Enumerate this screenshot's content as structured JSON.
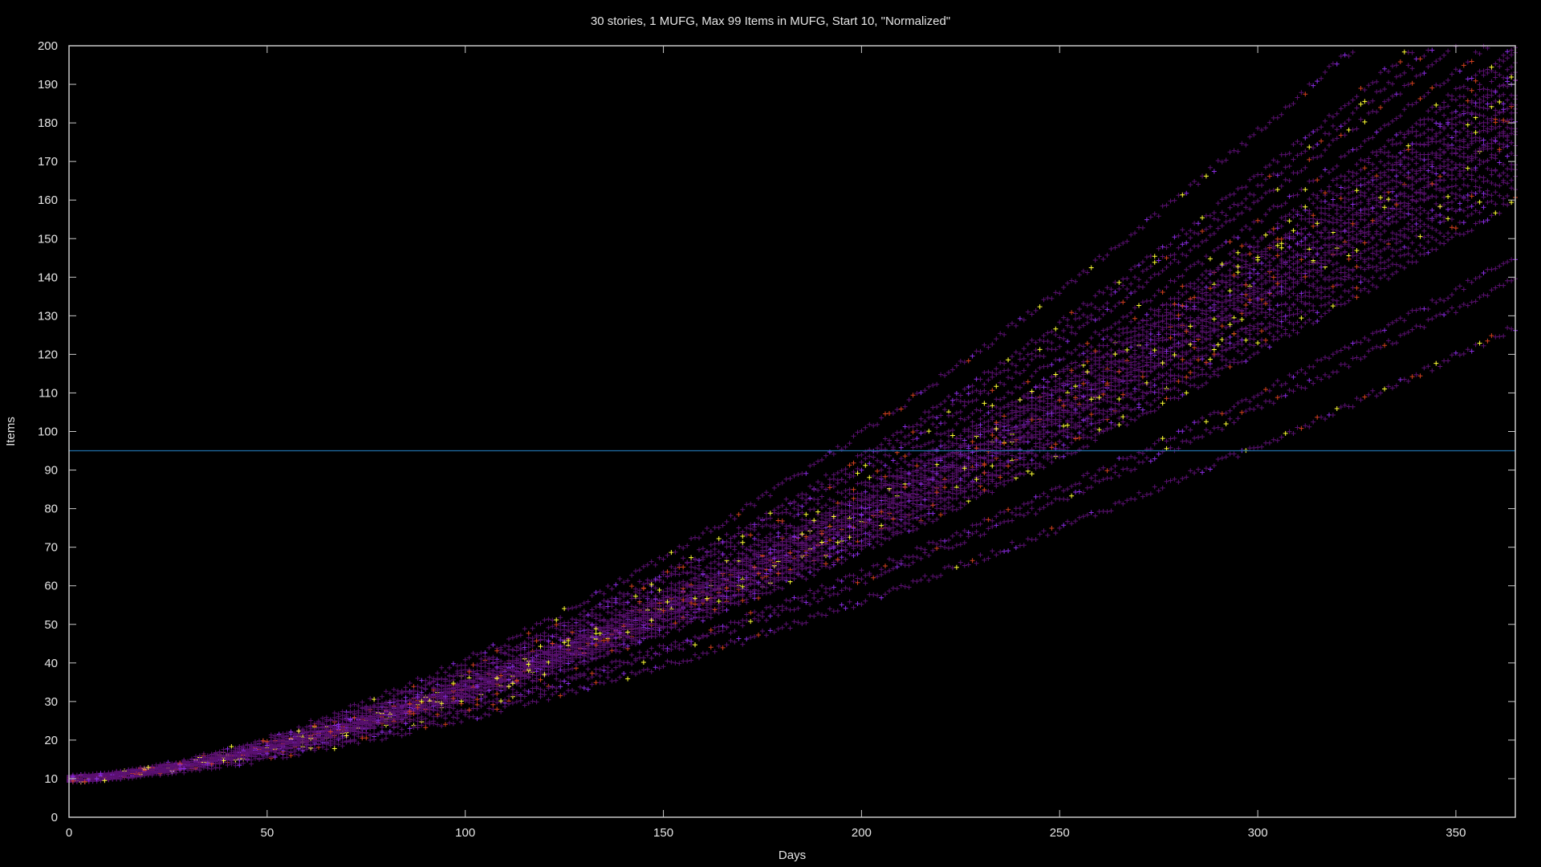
{
  "chart_data": {
    "type": "scatter",
    "title": "30 stories, 1 MUFG, Max 99 Items in MUFG, Start 10, \"Normalized\"",
    "xlabel": "Days",
    "ylabel": "Items",
    "xlim": [
      0,
      365
    ],
    "ylim": [
      0,
      200
    ],
    "xticks": [
      0,
      50,
      100,
      150,
      200,
      250,
      300,
      350
    ],
    "yticks": [
      0,
      10,
      20,
      30,
      40,
      50,
      60,
      70,
      80,
      90,
      100,
      110,
      120,
      130,
      140,
      150,
      160,
      170,
      180,
      190,
      200
    ],
    "grid": false,
    "marker": "+",
    "colors": {
      "background": "#000000",
      "axis": "#c8c8c8",
      "text": "#e6e6e6",
      "reference_line": "#1f6fa8",
      "low_density": "#5a1070",
      "mid_density": "#8a2be2",
      "high_density": "#d2401e",
      "peak_density": "#ffff33"
    },
    "reference_line": {
      "y": 95
    },
    "series": [
      {
        "start": 10,
        "end_day": 365,
        "end_items": 140
      },
      {
        "start": 10,
        "end_day": 365,
        "end_items": 145
      },
      {
        "start": 10,
        "end_day": 365,
        "end_items": 127
      },
      {
        "start": 10,
        "end_day": 365,
        "end_items": 166
      },
      {
        "start": 10,
        "end_day": 365,
        "end_items": 160
      },
      {
        "start": 10,
        "end_day": 365,
        "end_items": 170
      },
      {
        "start": 10,
        "end_day": 365,
        "end_items": 175
      },
      {
        "start": 10,
        "end_day": 365,
        "end_items": 178
      },
      {
        "start": 10,
        "end_day": 365,
        "end_items": 180
      },
      {
        "start": 10,
        "end_day": 365,
        "end_items": 182
      },
      {
        "start": 10,
        "end_day": 365,
        "end_items": 185
      },
      {
        "start": 10,
        "end_day": 365,
        "end_items": 188
      },
      {
        "start": 10,
        "end_day": 365,
        "end_items": 190
      },
      {
        "start": 10,
        "end_day": 365,
        "end_items": 193
      },
      {
        "start": 10,
        "end_day": 365,
        "end_items": 195
      },
      {
        "start": 10,
        "end_day": 365,
        "end_items": 198
      },
      {
        "start": 10,
        "end_day": 365,
        "end_items": 200
      },
      {
        "start": 10,
        "end_day": 345,
        "end_items": 200
      },
      {
        "start": 10,
        "end_day": 325,
        "end_items": 200
      },
      {
        "start": 10,
        "end_day": 358,
        "end_items": 200
      },
      {
        "start": 10,
        "end_day": 340,
        "end_items": 200
      },
      {
        "start": 10,
        "end_day": 365,
        "end_items": 172
      },
      {
        "start": 10,
        "end_day": 365,
        "end_items": 168
      },
      {
        "start": 10,
        "end_day": 365,
        "end_items": 186
      },
      {
        "start": 10,
        "end_day": 365,
        "end_items": 176
      },
      {
        "start": 10,
        "end_day": 365,
        "end_items": 192
      },
      {
        "start": 10,
        "end_day": 365,
        "end_items": 163
      },
      {
        "start": 10,
        "end_day": 350,
        "end_items": 200
      },
      {
        "start": 10,
        "end_day": 365,
        "end_items": 183
      },
      {
        "start": 10,
        "end_day": 365,
        "end_items": 179
      }
    ]
  }
}
